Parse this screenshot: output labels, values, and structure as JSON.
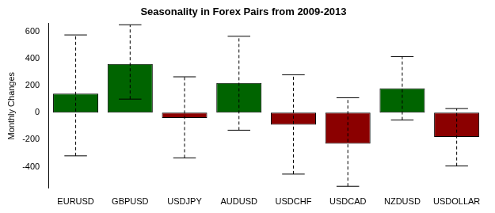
{
  "chart_data": {
    "type": "bar",
    "title": "Seasonality in Forex Pairs from 2009-2013",
    "y_label": "Monthly Changes",
    "categories": [
      "EURUSD",
      "GBPUSD",
      "USDJPY",
      "AUDUSD",
      "USDCHF",
      "USDCAD",
      "NZDUSD",
      "USDOLLAR"
    ],
    "values": [
      140,
      360,
      -40,
      220,
      -90,
      -230,
      180,
      -180
    ],
    "whisker_low": [
      -320,
      100,
      -335,
      -130,
      -455,
      -545,
      -55,
      -395
    ],
    "whisker_high": [
      575,
      650,
      265,
      565,
      280,
      110,
      415,
      30
    ],
    "colors": [
      "#006400",
      "#006400",
      "#8b0000",
      "#006400",
      "#8b0000",
      "#8b0000",
      "#006400",
      "#8b0000"
    ],
    "ylim": [
      -560,
      660
    ],
    "yticks": [
      -400,
      -200,
      0,
      200,
      400,
      600
    ],
    "grid": false
  }
}
